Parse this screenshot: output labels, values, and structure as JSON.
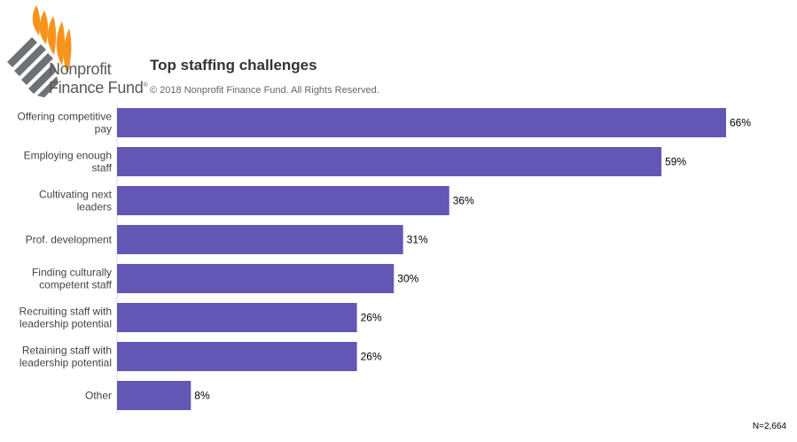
{
  "logo": {
    "line1": "Nonprofit",
    "line2": "Finance Fund",
    "mark": "®",
    "icon": "leaf-logo-icon",
    "colors": {
      "orange": "#f7941d",
      "gray": "#6d7278"
    }
  },
  "header": {
    "title": "Top staffing challenges",
    "copyright": "© 2018 Nonprofit Finance Fund. All Rights Reserved."
  },
  "chart_data": {
    "type": "bar",
    "orientation": "horizontal",
    "categories": [
      [
        "Offering competitive",
        "pay"
      ],
      [
        "Employing enough",
        "staff"
      ],
      [
        "Cultivating next",
        "leaders"
      ],
      [
        "Prof. development"
      ],
      [
        "Finding culturally",
        "competent staff"
      ],
      [
        "Recruiting staff with",
        "leadership potential"
      ],
      [
        "Retaining staff with",
        "leadership potential"
      ],
      [
        "Other"
      ]
    ],
    "values": [
      66,
      59,
      36,
      31,
      30,
      26,
      26,
      8
    ],
    "value_labels": [
      "66%",
      "59%",
      "36%",
      "31%",
      "30%",
      "26%",
      "26%",
      "8%"
    ],
    "unit": "%",
    "xlim": [
      0,
      66
    ],
    "bar_color": "#6357b5",
    "grid": false
  },
  "footnote": "N=2,664"
}
